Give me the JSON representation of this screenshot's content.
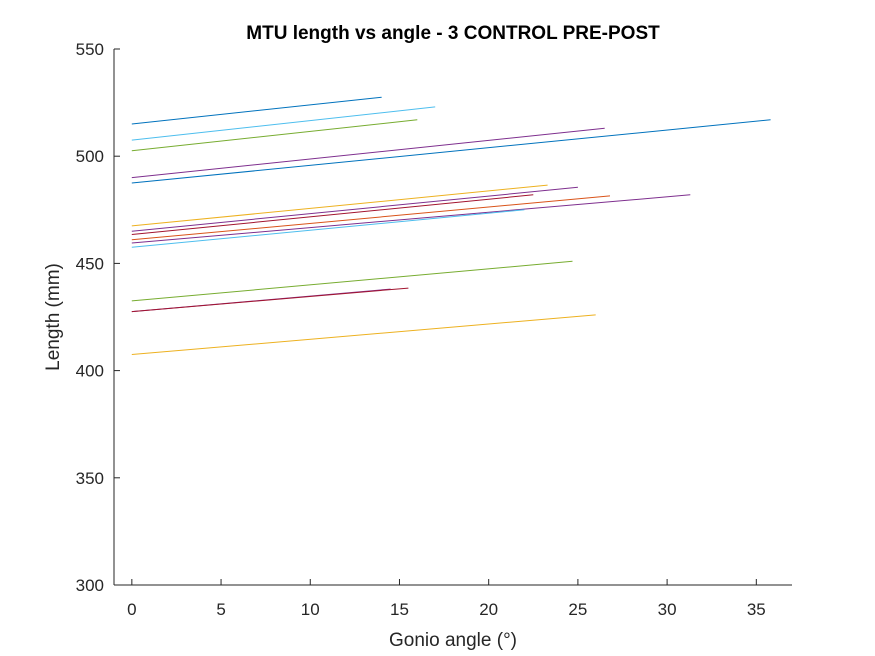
{
  "chart_data": {
    "type": "line",
    "title": "MTU length vs angle - 3 CONTROL PRE-POST",
    "xlabel": "Gonio angle (°)",
    "ylabel": "Length (mm)",
    "xlim": [
      -1,
      37
    ],
    "ylim": [
      300,
      550
    ],
    "xticks": [
      0,
      5,
      10,
      15,
      20,
      25,
      30,
      35
    ],
    "yticks": [
      300,
      350,
      400,
      450,
      500,
      550
    ],
    "grid": false,
    "box": false,
    "series": [
      {
        "color": "#0072BD",
        "x": [
          0,
          14
        ],
        "y": [
          515,
          527.5
        ]
      },
      {
        "color": "#4DBEEE",
        "x": [
          0,
          17
        ],
        "y": [
          507.5,
          523
        ]
      },
      {
        "color": "#77AC30",
        "x": [
          0,
          16
        ],
        "y": [
          502.5,
          517
        ]
      },
      {
        "color": "#7E2F8E",
        "x": [
          0,
          26.5
        ],
        "y": [
          490,
          513
        ]
      },
      {
        "color": "#0072BD",
        "x": [
          0,
          35.8
        ],
        "y": [
          487.5,
          517
        ]
      },
      {
        "color": "#EDB120",
        "x": [
          0,
          23.3
        ],
        "y": [
          467.5,
          486.5
        ]
      },
      {
        "color": "#7E2F8E",
        "x": [
          0,
          25
        ],
        "y": [
          465,
          485.5
        ]
      },
      {
        "color": "#A2142F",
        "x": [
          0,
          22.5
        ],
        "y": [
          463.5,
          482
        ]
      },
      {
        "color": "#D95319",
        "x": [
          0,
          26.8
        ],
        "y": [
          461,
          481.5
        ]
      },
      {
        "color": "#7E2F8E",
        "x": [
          0,
          31.3
        ],
        "y": [
          459.5,
          482
        ]
      },
      {
        "color": "#4DBEEE",
        "x": [
          0,
          22
        ],
        "y": [
          457.5,
          475
        ]
      },
      {
        "color": "#77AC30",
        "x": [
          0,
          24.7
        ],
        "y": [
          432.5,
          451
        ]
      },
      {
        "color": "#7E2F8E",
        "x": [
          0,
          14.5
        ],
        "y": [
          427.5,
          438
        ]
      },
      {
        "color": "#A2142F",
        "x": [
          0,
          15.5
        ],
        "y": [
          427.5,
          438.5
        ]
      },
      {
        "color": "#EDB120",
        "x": [
          0,
          26
        ],
        "y": [
          407.5,
          426
        ]
      }
    ]
  }
}
